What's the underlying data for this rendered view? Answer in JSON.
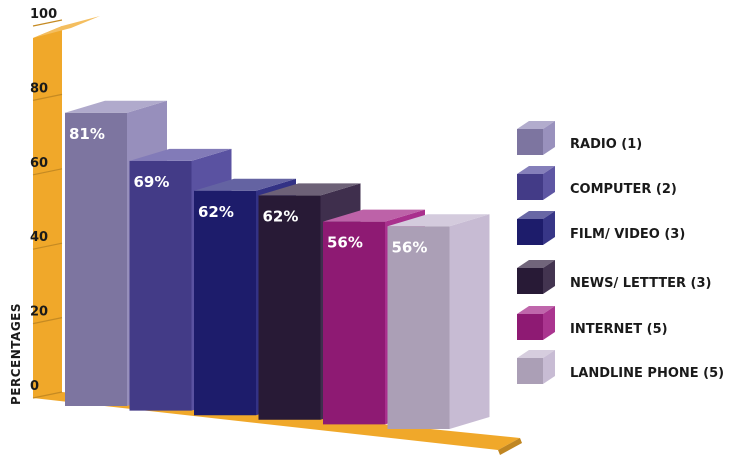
{
  "chart_data": {
    "type": "bar",
    "style": "3d",
    "ylabel": "PERCENTAGES",
    "ylim": [
      0,
      100
    ],
    "yticks": [
      "0",
      "20",
      "40",
      "60",
      "80",
      "100"
    ],
    "grid": false,
    "legend_position": "right",
    "categories": [
      "RADIO (1)",
      "COMPUTER (2)",
      "FILM/ VIDEO (3)",
      "NEWS/ LETTTER (3)",
      "INTERNET (5)",
      "LANDLINE PHONE (5)"
    ],
    "values": [
      81,
      69,
      62,
      62,
      56,
      56
    ],
    "data_labels": [
      "81%",
      "69%",
      "62%",
      "62%",
      "56%",
      "56%"
    ],
    "colors": [
      "#8e85b6",
      "#4c4399",
      "#21207a",
      "#2e1d3d",
      "#a11e83",
      "#c2b5cf"
    ],
    "floor_color": "#f0a82a"
  }
}
